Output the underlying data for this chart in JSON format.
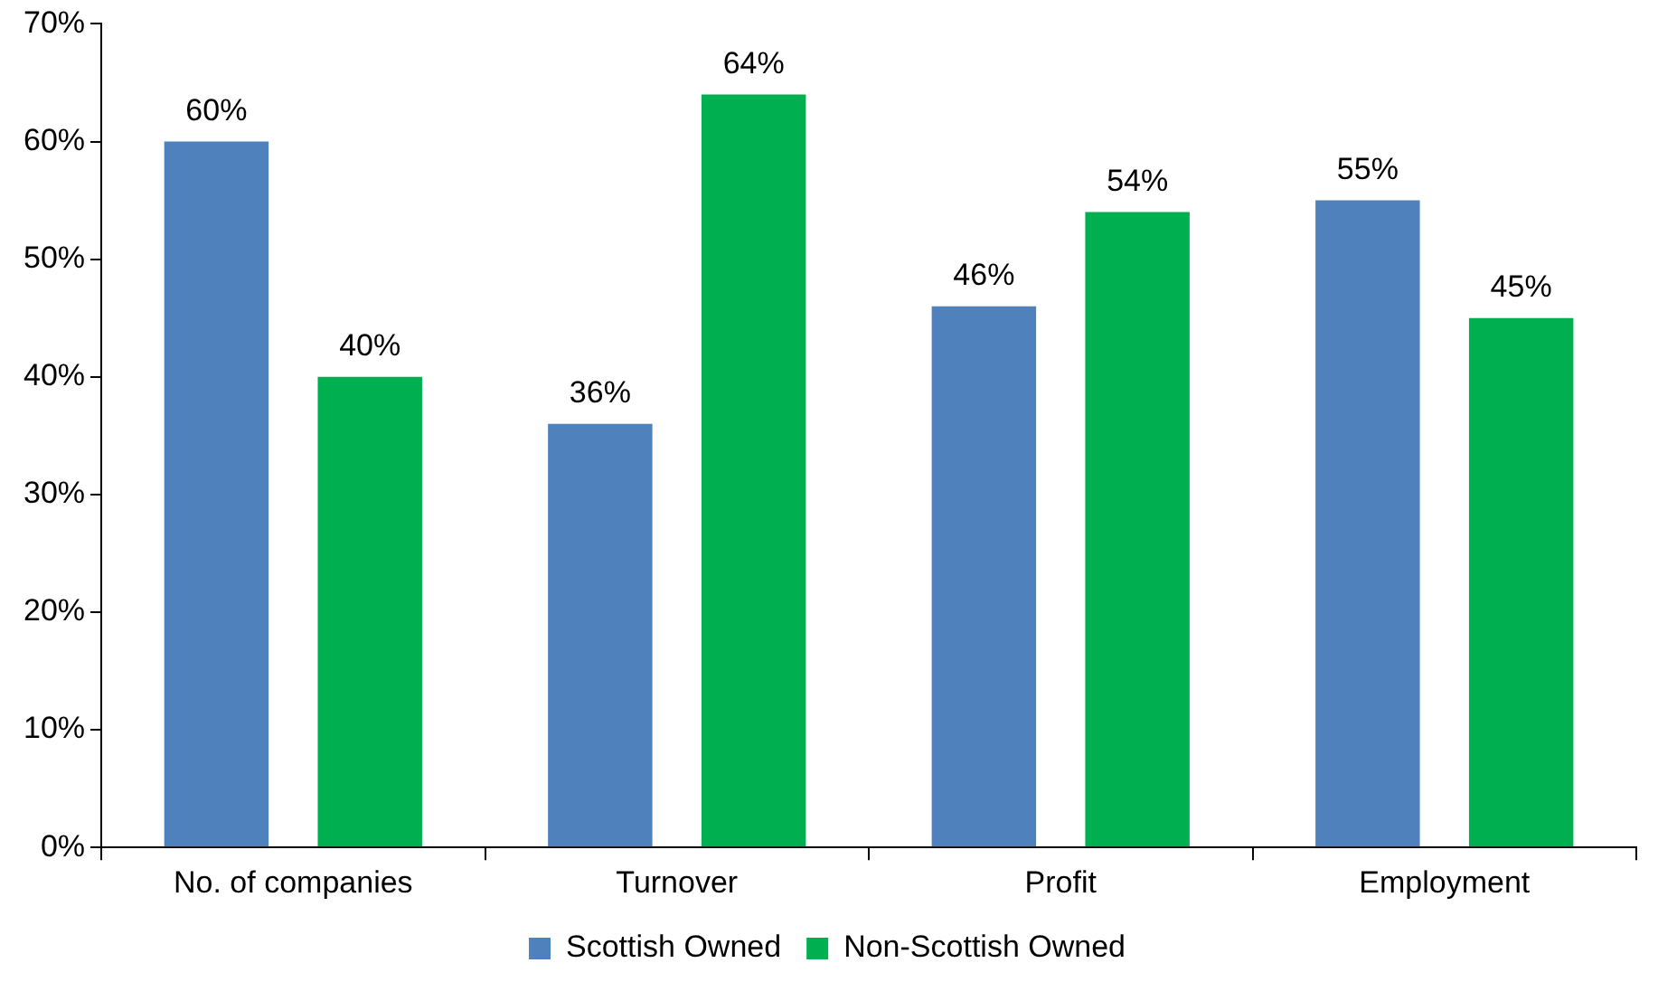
{
  "chart_data": {
    "type": "bar",
    "categories": [
      "No. of companies",
      "Turnover",
      "Profit",
      "Employment"
    ],
    "series": [
      {
        "name": "Scottish Owned",
        "color": "#4f81bd",
        "values": [
          60,
          36,
          46,
          55
        ],
        "value_labels": [
          "60%",
          "36%",
          "46%",
          "55%"
        ]
      },
      {
        "name": "Non-Scottish Owned",
        "color": "#00b050",
        "values": [
          40,
          64,
          54,
          45
        ],
        "value_labels": [
          "40%",
          "64%",
          "54%",
          "45%"
        ]
      }
    ],
    "ylim": [
      0,
      70
    ],
    "yticks": [
      {
        "value": 0,
        "label": "0%"
      },
      {
        "value": 10,
        "label": "10%"
      },
      {
        "value": 20,
        "label": "20%"
      },
      {
        "value": 30,
        "label": "30%"
      },
      {
        "value": 40,
        "label": "40%"
      },
      {
        "value": 50,
        "label": "50%"
      },
      {
        "value": 60,
        "label": "60%"
      },
      {
        "value": 70,
        "label": "70%"
      }
    ],
    "grid": false,
    "legend": "bottom"
  }
}
